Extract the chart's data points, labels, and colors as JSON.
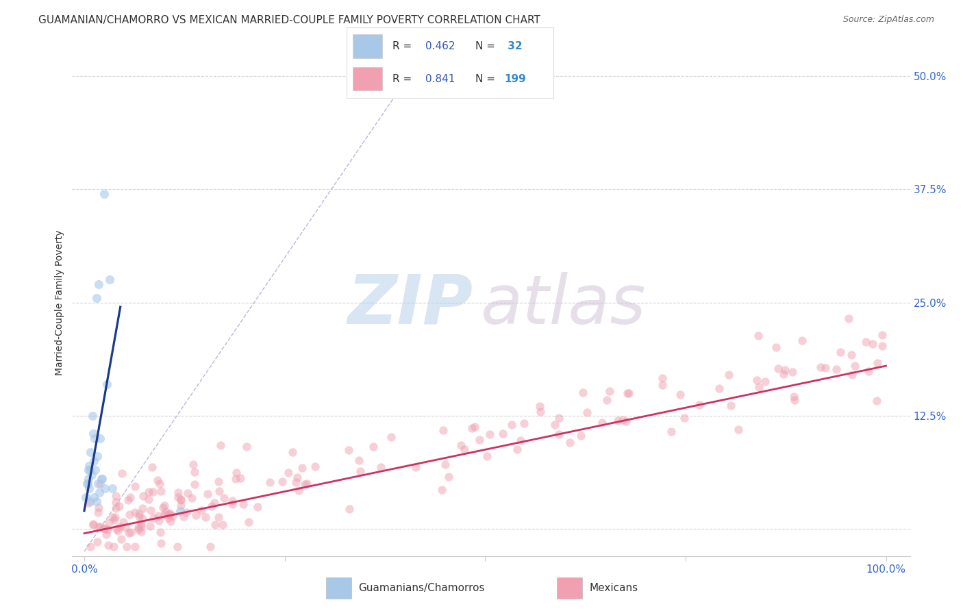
{
  "title": "GUAMANIAN/CHAMORRO VS MEXICAN MARRIED-COUPLE FAMILY POVERTY CORRELATION CHART",
  "source": "Source: ZipAtlas.com",
  "ylabel": "Married-Couple Family Poverty",
  "xlim_min": -1.5,
  "xlim_max": 103,
  "ylim_min": -3,
  "ylim_max": 53,
  "legend_R1": "0.462",
  "legend_N1": " 32",
  "legend_R2": "0.841",
  "legend_N2": "199",
  "color_blue_scatter": "#a8c8e8",
  "color_pink_scatter": "#f0a0b0",
  "color_blue_line": "#1a3a8a",
  "color_pink_line": "#d03060",
  "color_diag_line": "#9999cc",
  "color_grid": "#cccccc",
  "color_tick_label": "#3366cc",
  "color_title": "#333333",
  "color_source": "#666666",
  "watermark_color_zip": "#b8d0e8",
  "watermark_color_atlas": "#c8b8d0",
  "title_fontsize": 11,
  "source_fontsize": 9,
  "tick_fontsize": 11,
  "legend_fontsize": 11,
  "ylabel_fontsize": 10,
  "blue_x": [
    0.3,
    0.4,
    0.5,
    0.5,
    0.6,
    0.6,
    0.7,
    0.8,
    0.8,
    0.9,
    1.0,
    1.1,
    1.2,
    1.2,
    1.3,
    1.4,
    1.5,
    1.6,
    1.7,
    1.8,
    1.9,
    2.0,
    2.1,
    2.2,
    2.5,
    2.6,
    2.8,
    3.2,
    3.5,
    12.0,
    0.2,
    1.5
  ],
  "blue_y": [
    5.0,
    5.0,
    5.5,
    6.5,
    4.5,
    7.0,
    6.5,
    8.5,
    3.0,
    6.0,
    12.5,
    10.5,
    7.5,
    3.5,
    10.0,
    6.5,
    25.5,
    8.0,
    5.0,
    27.0,
    4.0,
    10.0,
    5.5,
    5.5,
    37.0,
    4.5,
    16.0,
    27.5,
    4.5,
    2.0,
    3.5,
    3.0
  ],
  "blue_line_x0": 0.0,
  "blue_line_x1": 4.5,
  "pink_line_x0": 0.0,
  "pink_line_x1": 100.0,
  "diag_x0": 0.0,
  "diag_x1": 42.0,
  "diag_y0": -2.5,
  "diag_y1": 52.0
}
